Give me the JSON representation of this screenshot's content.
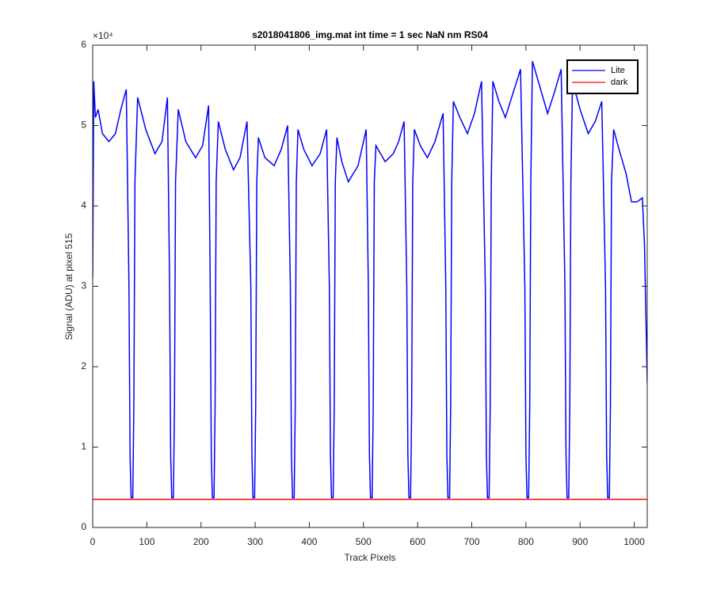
{
  "chart_data": {
    "type": "line",
    "title": "s2018041806_img.mat int time = 1 sec  NaN nm RS04",
    "x_label": "Track Pixels",
    "y_label": "Signal (ADU) at pixel 515",
    "y_exponent_label": "×10⁴",
    "xlim": [
      0,
      1024
    ],
    "ylim": [
      0,
      6
    ],
    "xticks": [
      0,
      100,
      200,
      300,
      400,
      500,
      600,
      700,
      800,
      900,
      1000
    ],
    "yticks": [
      0,
      1,
      2,
      3,
      4,
      5,
      6
    ],
    "grid": false,
    "legend": "northeast",
    "series": [
      {
        "name": "Lite",
        "color": "#0000ff",
        "x": [
          0,
          2,
          5,
          10,
          18,
          30,
          42,
          52,
          62,
          67,
          69,
          71,
          74,
          76,
          78,
          83,
          98,
          115,
          128,
          138,
          142,
          144,
          146,
          149,
          151,
          153,
          158,
          172,
          190,
          203,
          214,
          217,
          219,
          221,
          224,
          226,
          228,
          232,
          245,
          260,
          272,
          285,
          292,
          294,
          296,
          299,
          301,
          303,
          306,
          318,
          335,
          348,
          360,
          365,
          367,
          369,
          372,
          374,
          376,
          379,
          390,
          405,
          420,
          432,
          437,
          439,
          441,
          444,
          446,
          448,
          451,
          460,
          472,
          490,
          505,
          509,
          511,
          513,
          516,
          518,
          520,
          523,
          540,
          555,
          565,
          575,
          580,
          582,
          584,
          587,
          589,
          591,
          594,
          605,
          618,
          632,
          647,
          652,
          654,
          656,
          659,
          661,
          663,
          666,
          678,
          692,
          705,
          718,
          725,
          727,
          729,
          732,
          734,
          736,
          739,
          750,
          762,
          776,
          790,
          798,
          800,
          802,
          805,
          807,
          809,
          812,
          825,
          840,
          852,
          865,
          872,
          874,
          876,
          879,
          881,
          883,
          886,
          900,
          915,
          928,
          940,
          947,
          949,
          951,
          954,
          956,
          958,
          962,
          972,
          985,
          995,
          1005,
          1015,
          1019,
          1024
        ],
        "values": [
          3.1,
          5.55,
          5.1,
          5.2,
          4.9,
          4.8,
          4.9,
          5.2,
          5.45,
          3.0,
          0.9,
          0.37,
          0.37,
          1.5,
          4.3,
          5.35,
          4.95,
          4.65,
          4.8,
          5.35,
          3.0,
          0.9,
          0.37,
          0.37,
          1.5,
          4.3,
          5.2,
          4.8,
          4.6,
          4.75,
          5.25,
          3.0,
          0.9,
          0.37,
          0.37,
          1.5,
          4.3,
          5.05,
          4.7,
          4.45,
          4.6,
          5.05,
          3.0,
          0.9,
          0.37,
          0.37,
          1.5,
          4.3,
          4.85,
          4.6,
          4.5,
          4.7,
          5.0,
          3.0,
          0.9,
          0.37,
          0.37,
          1.5,
          4.3,
          4.95,
          4.7,
          4.5,
          4.65,
          4.95,
          3.0,
          0.9,
          0.37,
          0.37,
          1.5,
          4.3,
          4.85,
          4.55,
          4.3,
          4.5,
          4.95,
          3.0,
          0.9,
          0.37,
          0.37,
          1.5,
          4.3,
          4.75,
          4.55,
          4.65,
          4.8,
          5.05,
          3.0,
          0.9,
          0.37,
          0.37,
          1.5,
          4.3,
          4.95,
          4.75,
          4.6,
          4.8,
          5.15,
          3.0,
          0.9,
          0.37,
          0.37,
          1.5,
          4.3,
          5.3,
          5.1,
          4.9,
          5.15,
          5.55,
          3.0,
          0.9,
          0.37,
          0.37,
          1.5,
          4.3,
          5.55,
          5.3,
          5.1,
          5.4,
          5.7,
          3.0,
          0.9,
          0.37,
          0.37,
          1.5,
          4.3,
          5.8,
          5.5,
          5.15,
          5.4,
          5.7,
          3.0,
          0.9,
          0.37,
          0.37,
          1.5,
          4.3,
          5.55,
          5.2,
          4.9,
          5.05,
          5.3,
          3.0,
          0.9,
          0.37,
          0.37,
          1.5,
          4.3,
          4.95,
          4.7,
          4.4,
          4.05,
          4.05,
          4.1,
          3.5,
          1.8
        ]
      },
      {
        "name": "dark",
        "color": "#ff0000",
        "x": [
          0,
          1024
        ],
        "values": [
          0.35,
          0.35
        ]
      }
    ]
  }
}
